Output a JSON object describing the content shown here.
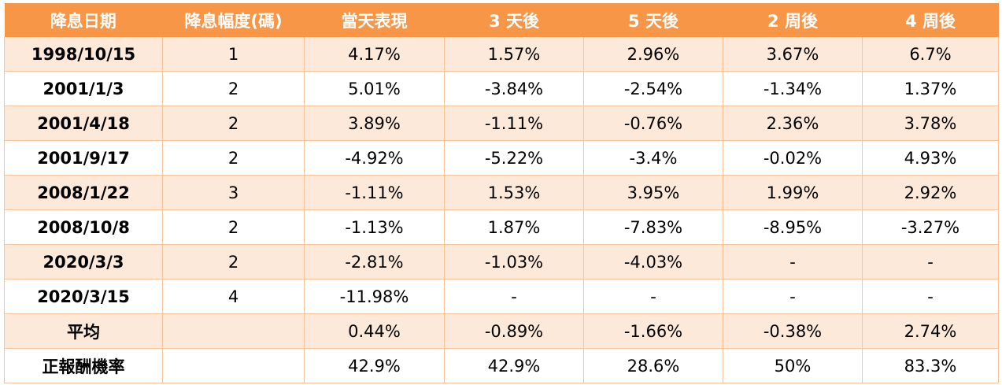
{
  "table": {
    "headers": [
      "降息日期",
      "降息幅度(碼)",
      "當天表現",
      "3 天後",
      "5 天後",
      "2 周後",
      "4 周後"
    ],
    "rows": [
      [
        "1998/10/15",
        "1",
        "4.17%",
        "1.57%",
        "2.96%",
        "3.67%",
        "6.7%"
      ],
      [
        "2001/1/3",
        "2",
        "5.01%",
        "-3.84%",
        "-2.54%",
        "-1.34%",
        "1.37%"
      ],
      [
        "2001/4/18",
        "2",
        "3.89%",
        "-1.11%",
        "-0.76%",
        "2.36%",
        "3.78%"
      ],
      [
        "2001/9/17",
        "2",
        "-4.92%",
        "-5.22%",
        "-3.4%",
        "-0.02%",
        "4.93%"
      ],
      [
        "2008/1/22",
        "3",
        "-1.11%",
        "1.53%",
        "3.95%",
        "1.99%",
        "2.92%"
      ],
      [
        "2008/10/8",
        "2",
        "-1.13%",
        "1.87%",
        "-7.83%",
        "-8.95%",
        "-3.27%"
      ],
      [
        "2020/3/3",
        "2",
        "-2.81%",
        "-1.03%",
        "-4.03%",
        "-",
        "-"
      ],
      [
        "2020/3/15",
        "4",
        "-11.98%",
        "-",
        "-",
        "-",
        "-"
      ],
      [
        "平均",
        "",
        "0.44%",
        "-0.89%",
        "-1.66%",
        "-0.38%",
        "2.74%"
      ],
      [
        "正報酬機率",
        "",
        "42.9%",
        "42.9%",
        "28.6%",
        "50%",
        "83.3%"
      ]
    ]
  },
  "colors": {
    "header_bg": "#f79646",
    "header_text": "#ffffff",
    "band_row_bg": "#fde9d9",
    "plain_row_bg": "#ffffff",
    "grid_line": "#f8c49a"
  }
}
